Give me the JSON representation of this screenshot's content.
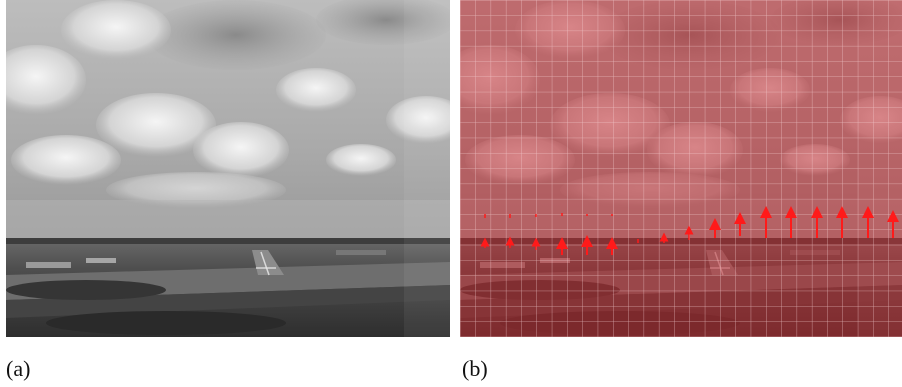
{
  "figure": {
    "panels": [
      {
        "caption": "(a)",
        "content": "grayscale-aerial-photo-runway-approach"
      },
      {
        "caption": "(b)",
        "content": "same-photo-red-tint-grid-overlay-with-flow-vectors"
      }
    ],
    "colors": {
      "sky_light": "#d9d9d9",
      "sky_dark": "#8f8f8f",
      "cloud": "#f2f2f2",
      "ground_dark": "#3a3a3a",
      "ground_mid": "#5e5e5e",
      "tint": "#c0282e",
      "grid_line": "#f3c7c9",
      "vector": "#ff1a1a"
    }
  }
}
